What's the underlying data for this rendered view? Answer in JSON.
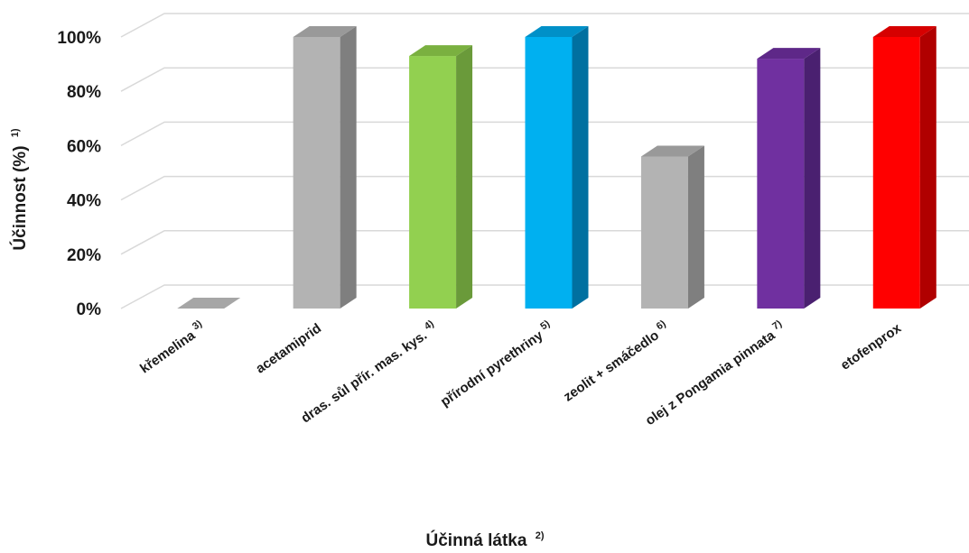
{
  "chart_data": {
    "type": "bar",
    "categories": [
      {
        "label": "křemelina",
        "note": "3)"
      },
      {
        "label": "acetamiprid",
        "note": ""
      },
      {
        "label": "dras. sůl přír. mas. kys.",
        "note": "4)"
      },
      {
        "label": "přírodní pyrethriny",
        "note": "5)"
      },
      {
        "label": "zeolit + smáčedlo",
        "note": "6)"
      },
      {
        "label": "olej z Pongamia pinnata",
        "note": "7)"
      },
      {
        "label": "etofenprox",
        "note": ""
      }
    ],
    "values": [
      0,
      100,
      93,
      100,
      56,
      92,
      100
    ],
    "colors": [
      "#b3b3b3",
      "#b3b3b3",
      "#92d050",
      "#00b0f0",
      "#b3b3b3",
      "#7030a0",
      "#ff0000"
    ],
    "side_colors": [
      "#8c8c8c",
      "#7f7f7f",
      "#6a9a3a",
      "#0070a0",
      "#7f7f7f",
      "#4a2070",
      "#b00000"
    ],
    "top_colors": [
      "#a6a6a6",
      "#999999",
      "#7ab040",
      "#0090c8",
      "#999999",
      "#5e2888",
      "#d60000"
    ],
    "xlabel": "Účinná látka",
    "xlabel_note": "2)",
    "ylabel": "Účinnost (%)",
    "ylabel_note": "1)",
    "ylim": [
      0,
      100
    ],
    "yticks": [
      "0%",
      "20%",
      "40%",
      "60%",
      "80%",
      "100%"
    ],
    "grid": true,
    "three_d": true
  }
}
